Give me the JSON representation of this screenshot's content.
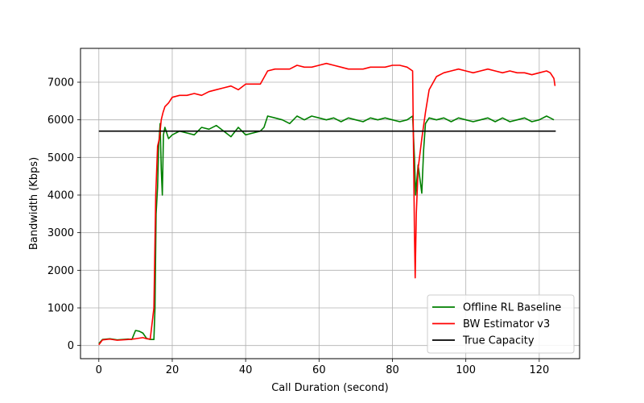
{
  "chart_data": {
    "type": "line",
    "title": "",
    "xlabel": "Call Duration (second)",
    "ylabel": "Bandwidth (Kbps)",
    "xlim": [
      -5,
      131
    ],
    "ylim": [
      -350,
      7900
    ],
    "x_ticks": [
      0,
      20,
      40,
      60,
      80,
      100,
      120
    ],
    "y_ticks": [
      0,
      1000,
      2000,
      3000,
      4000,
      5000,
      6000,
      7000
    ],
    "grid": true,
    "legend_position": "bottom-right",
    "series": [
      {
        "name": "Offline RL Baseline",
        "color": "#008000",
        "points": [
          [
            0,
            50
          ],
          [
            1,
            160
          ],
          [
            3,
            180
          ],
          [
            5,
            150
          ],
          [
            8,
            170
          ],
          [
            9,
            160
          ],
          [
            10,
            400
          ],
          [
            11,
            380
          ],
          [
            12,
            330
          ],
          [
            13,
            190
          ],
          [
            14,
            160
          ],
          [
            15,
            160
          ],
          [
            15.3,
            1000
          ],
          [
            15.6,
            3500
          ],
          [
            16,
            4200
          ],
          [
            16.3,
            5300
          ],
          [
            16.7,
            5900
          ],
          [
            17,
            4700
          ],
          [
            17.3,
            4000
          ],
          [
            17.6,
            5600
          ],
          [
            18,
            5800
          ],
          [
            19,
            5500
          ],
          [
            20,
            5600
          ],
          [
            22,
            5700
          ],
          [
            24,
            5650
          ],
          [
            26,
            5600
          ],
          [
            28,
            5800
          ],
          [
            30,
            5750
          ],
          [
            32,
            5850
          ],
          [
            34,
            5700
          ],
          [
            36,
            5550
          ],
          [
            38,
            5800
          ],
          [
            40,
            5600
          ],
          [
            42,
            5650
          ],
          [
            44,
            5700
          ],
          [
            45,
            5800
          ],
          [
            46,
            6100
          ],
          [
            48,
            6050
          ],
          [
            50,
            6000
          ],
          [
            52,
            5900
          ],
          [
            54,
            6100
          ],
          [
            56,
            6000
          ],
          [
            58,
            6100
          ],
          [
            60,
            6050
          ],
          [
            62,
            6000
          ],
          [
            64,
            6050
          ],
          [
            66,
            5950
          ],
          [
            68,
            6050
          ],
          [
            70,
            6000
          ],
          [
            72,
            5950
          ],
          [
            74,
            6050
          ],
          [
            76,
            6000
          ],
          [
            78,
            6050
          ],
          [
            80,
            6000
          ],
          [
            82,
            5950
          ],
          [
            84,
            6000
          ],
          [
            85.5,
            6100
          ],
          [
            86,
            5000
          ],
          [
            86.3,
            4000
          ],
          [
            87,
            4800
          ],
          [
            88,
            4050
          ],
          [
            88.5,
            5200
          ],
          [
            89,
            5900
          ],
          [
            90,
            6050
          ],
          [
            92,
            6000
          ],
          [
            94,
            6050
          ],
          [
            96,
            5950
          ],
          [
            98,
            6050
          ],
          [
            100,
            6000
          ],
          [
            102,
            5950
          ],
          [
            104,
            6000
          ],
          [
            106,
            6050
          ],
          [
            108,
            5950
          ],
          [
            110,
            6050
          ],
          [
            112,
            5950
          ],
          [
            114,
            6000
          ],
          [
            116,
            6050
          ],
          [
            118,
            5950
          ],
          [
            120,
            6000
          ],
          [
            122,
            6100
          ],
          [
            123,
            6050
          ],
          [
            124,
            6000
          ]
        ]
      },
      {
        "name": "BW Estimator v3",
        "color": "#ff0000",
        "points": [
          [
            0,
            20
          ],
          [
            1,
            150
          ],
          [
            3,
            170
          ],
          [
            5,
            140
          ],
          [
            8,
            160
          ],
          [
            10,
            180
          ],
          [
            12,
            210
          ],
          [
            13,
            180
          ],
          [
            14,
            170
          ],
          [
            15,
            1000
          ],
          [
            15.5,
            4000
          ],
          [
            16,
            5300
          ],
          [
            16.5,
            5500
          ],
          [
            17,
            6000
          ],
          [
            17.5,
            6200
          ],
          [
            18,
            6350
          ],
          [
            19,
            6450
          ],
          [
            20,
            6600
          ],
          [
            22,
            6650
          ],
          [
            24,
            6650
          ],
          [
            26,
            6700
          ],
          [
            28,
            6650
          ],
          [
            30,
            6750
          ],
          [
            32,
            6800
          ],
          [
            34,
            6850
          ],
          [
            36,
            6900
          ],
          [
            38,
            6800
          ],
          [
            40,
            6950
          ],
          [
            42,
            6950
          ],
          [
            44,
            6950
          ],
          [
            46,
            7300
          ],
          [
            48,
            7350
          ],
          [
            50,
            7350
          ],
          [
            52,
            7350
          ],
          [
            54,
            7450
          ],
          [
            56,
            7400
          ],
          [
            58,
            7400
          ],
          [
            60,
            7450
          ],
          [
            62,
            7500
          ],
          [
            64,
            7450
          ],
          [
            66,
            7400
          ],
          [
            68,
            7350
          ],
          [
            70,
            7350
          ],
          [
            72,
            7350
          ],
          [
            74,
            7400
          ],
          [
            76,
            7400
          ],
          [
            78,
            7400
          ],
          [
            80,
            7450
          ],
          [
            82,
            7450
          ],
          [
            84,
            7400
          ],
          [
            85.5,
            7300
          ],
          [
            86,
            3000
          ],
          [
            86.2,
            1800
          ],
          [
            86.5,
            3500
          ],
          [
            87,
            4700
          ],
          [
            88,
            5500
          ],
          [
            89,
            6200
          ],
          [
            90,
            6800
          ],
          [
            92,
            7150
          ],
          [
            94,
            7250
          ],
          [
            96,
            7300
          ],
          [
            98,
            7350
          ],
          [
            100,
            7300
          ],
          [
            102,
            7250
          ],
          [
            104,
            7300
          ],
          [
            106,
            7350
          ],
          [
            108,
            7300
          ],
          [
            110,
            7250
          ],
          [
            112,
            7300
          ],
          [
            114,
            7250
          ],
          [
            116,
            7250
          ],
          [
            118,
            7200
          ],
          [
            120,
            7250
          ],
          [
            122,
            7300
          ],
          [
            123,
            7250
          ],
          [
            124,
            7100
          ],
          [
            124.3,
            6900
          ]
        ]
      },
      {
        "name": "True Capacity",
        "color": "#000000",
        "points": [
          [
            0,
            5700
          ],
          [
            124.5,
            5700
          ]
        ]
      }
    ]
  }
}
